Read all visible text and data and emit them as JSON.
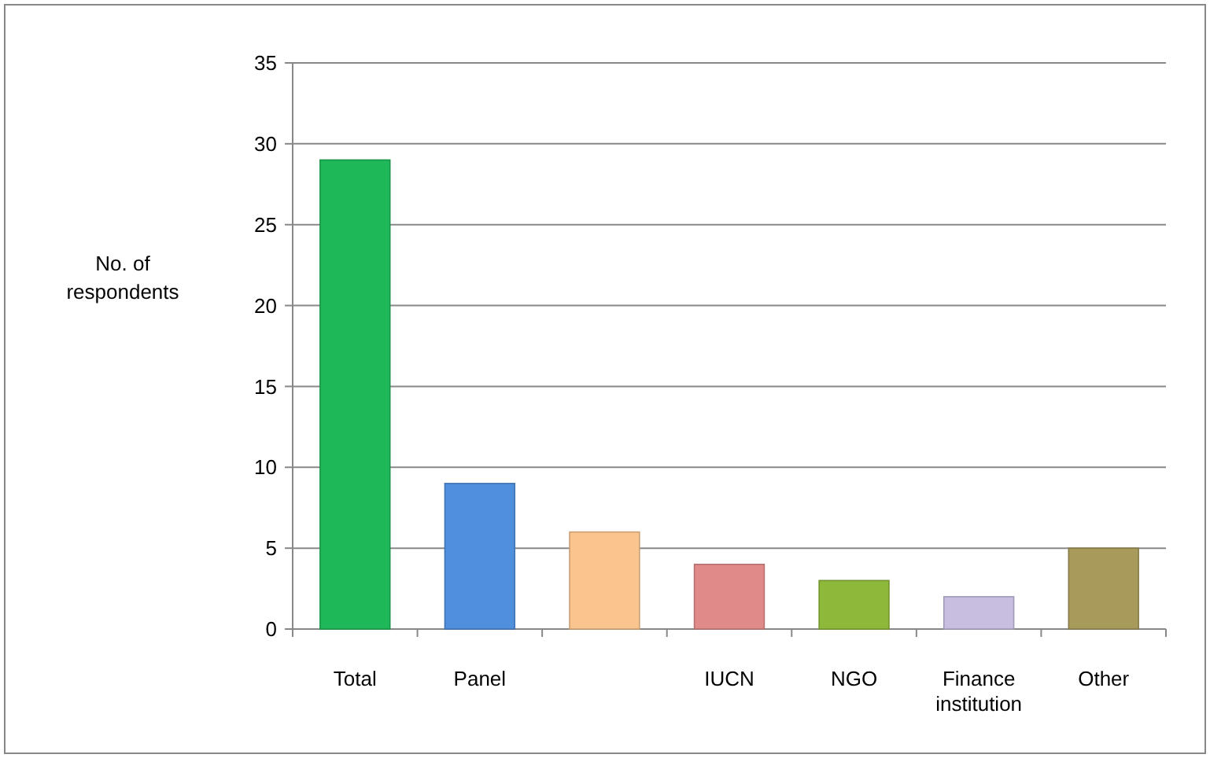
{
  "chart_data": {
    "type": "bar",
    "ylabel": "No. of respondents",
    "categories": [
      "Total",
      "Panel",
      null,
      "IUCN",
      "NGO",
      "Finance institution",
      "Other"
    ],
    "values": [
      29,
      9,
      6,
      4,
      3,
      2,
      5
    ],
    "colors": [
      "#1fb858",
      "#4f8fdc",
      "#fac48e",
      "#e08a8a",
      "#8db83a",
      "#c8bfe0",
      "#a79a5a"
    ],
    "ylim": [
      0,
      35
    ],
    "yticks": [
      0,
      5,
      10,
      15,
      20,
      25,
      30,
      35
    ],
    "grid": "y"
  }
}
